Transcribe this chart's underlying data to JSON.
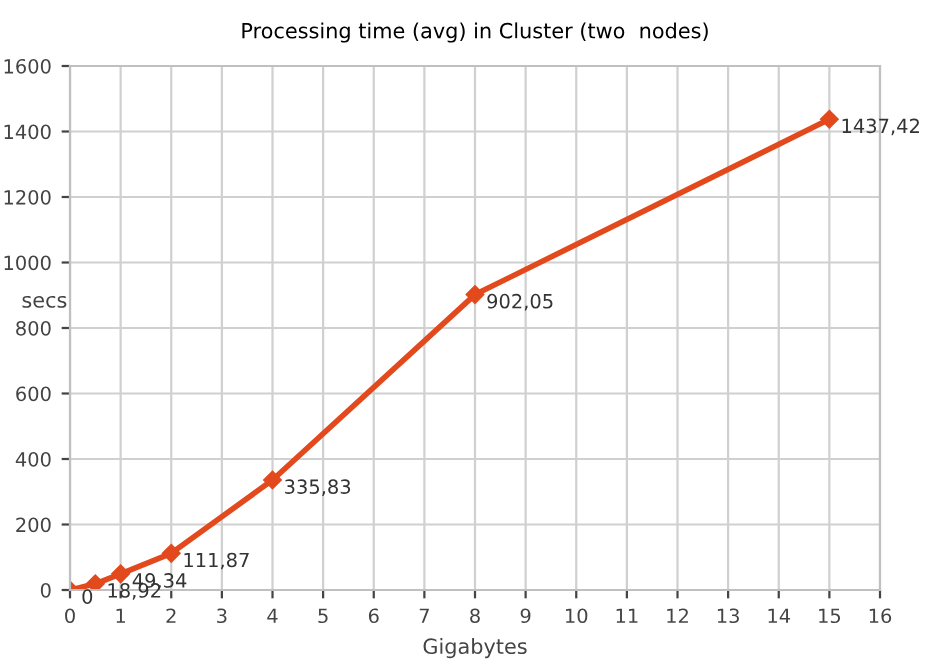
{
  "chart_data": {
    "type": "line",
    "title": "Processing time (avg) in Cluster (two  nodes)",
    "xlabel": "Gigabytes",
    "ylabel": "secs",
    "x": [
      0,
      0.5,
      1,
      2,
      4,
      8,
      15
    ],
    "series": [
      {
        "color": "#e2491c",
        "values": [
          0,
          18.92,
          49.34,
          111.87,
          335.83,
          902.05,
          1437.42
        ],
        "value_labels": [
          "0",
          "18,92",
          "49,34",
          "111,87",
          "335,83",
          "902,05",
          "1437,42"
        ]
      }
    ],
    "xlim": [
      0,
      16
    ],
    "xticks": [
      0,
      1,
      2,
      3,
      4,
      5,
      6,
      7,
      8,
      9,
      10,
      11,
      12,
      13,
      14,
      15,
      16
    ],
    "ylim": [
      0,
      1600
    ],
    "yticks": [
      0,
      200,
      400,
      600,
      800,
      1000,
      1200,
      1400,
      1600
    ],
    "grid": true,
    "marker": "diamond",
    "line_style": "solid"
  }
}
